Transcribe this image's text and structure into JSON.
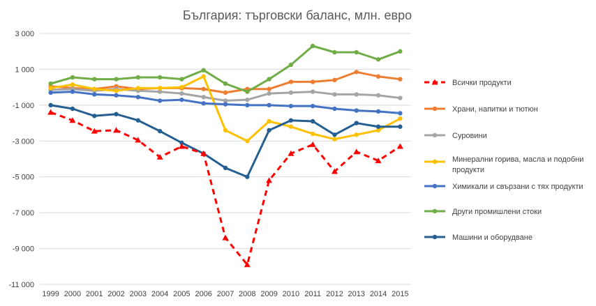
{
  "chart_data": {
    "type": "line",
    "title": "България: търговски баланс, млн. евро",
    "xlabel": "",
    "ylabel": "",
    "categories": [
      "1999",
      "2000",
      "2001",
      "2002",
      "2003",
      "2004",
      "2005",
      "2006",
      "2007",
      "2008",
      "2009",
      "2010",
      "2011",
      "2012",
      "2013",
      "2014",
      "2015"
    ],
    "ylim": [
      -11000,
      3000
    ],
    "yticks": [
      3000,
      1000,
      -1000,
      -3000,
      -5000,
      -7000,
      -9000,
      -11000
    ],
    "ytick_labels": [
      "3 000",
      "1 000",
      "-1 000",
      "-3 000",
      "-5 000",
      "-7 000",
      "-9 000",
      "-11 000"
    ],
    "grid": "horizontal",
    "legend_position": "right",
    "series": [
      {
        "name": "Всички продукти",
        "color": "#FF0000",
        "style": "dashed",
        "marker": "triangle",
        "values": [
          -1400,
          -1850,
          -2450,
          -2400,
          -2950,
          -3900,
          -3300,
          -3700,
          -8400,
          -9900,
          -5200,
          -3700,
          -3200,
          -4700,
          -3600,
          -4100,
          -3300
        ]
      },
      {
        "name": "Храни, напитки и тютюн",
        "color": "#ED7D31",
        "style": "solid",
        "marker": "circle",
        "values": [
          50,
          -50,
          -100,
          50,
          -100,
          -50,
          -50,
          -100,
          -300,
          -100,
          -100,
          300,
          300,
          400,
          850,
          600,
          450
        ]
      },
      {
        "name": "Суровини",
        "color": "#A5A5A5",
        "style": "solid",
        "marker": "circle",
        "values": [
          -150,
          -100,
          -200,
          -100,
          -200,
          -250,
          -350,
          -550,
          -750,
          -700,
          -350,
          -300,
          -250,
          -400,
          -400,
          -450,
          -600
        ]
      },
      {
        "name": "Минерални горива, масла и подобни продукти",
        "color": "#FFC000",
        "style": "solid",
        "marker": "circle",
        "values": [
          -50,
          150,
          -100,
          -200,
          -50,
          -50,
          0,
          600,
          -2400,
          -3000,
          -1900,
          -2200,
          -2600,
          -2900,
          -2650,
          -2400,
          -1750
        ]
      },
      {
        "name": "Химикали и свързани с тях продукти",
        "color": "#4472C4",
        "style": "solid",
        "marker": "circle",
        "values": [
          -300,
          -250,
          -400,
          -450,
          -550,
          -750,
          -700,
          -900,
          -950,
          -1000,
          -1000,
          -1050,
          -1050,
          -1200,
          -1300,
          -1350,
          -1450
        ]
      },
      {
        "name": "Други промишлени стоки",
        "color": "#70AD47",
        "style": "solid",
        "marker": "circle",
        "values": [
          200,
          550,
          450,
          450,
          550,
          550,
          450,
          950,
          200,
          -250,
          450,
          1250,
          2300,
          1950,
          1950,
          1550,
          2000
        ]
      },
      {
        "name": "Машини и оборудване",
        "color": "#255E91",
        "style": "solid",
        "marker": "circle",
        "values": [
          -1000,
          -1200,
          -1600,
          -1500,
          -1850,
          -2450,
          -3100,
          -3700,
          -4500,
          -5000,
          -2400,
          -1850,
          -1900,
          -2650,
          -2000,
          -2200,
          -2200
        ]
      }
    ]
  }
}
